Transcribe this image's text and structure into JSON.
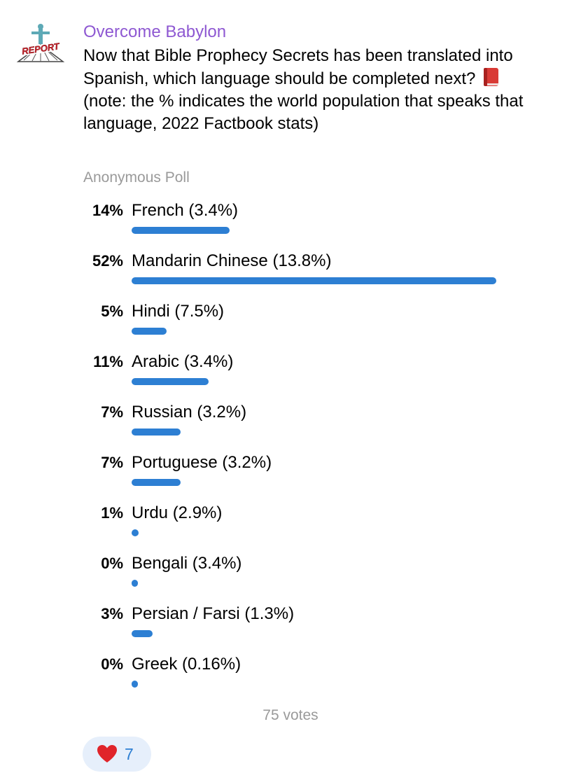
{
  "channel": {
    "name": "Overcome Babylon",
    "avatar_text": "REPORT"
  },
  "poll": {
    "question_part1": "Now that Bible Prophecy Secrets has been translated into Spanish, which language should be completed next?",
    "question_icon": "red-book-icon",
    "question_part2": "(note: the % indicates the world population that speaks that language, 2022 Factbook stats)",
    "type": "Anonymous Poll",
    "options": [
      {
        "percent": "14%",
        "label": "French (3.4%)",
        "value": 14
      },
      {
        "percent": "52%",
        "label": "Mandarin Chinese (13.8%)",
        "value": 52
      },
      {
        "percent": "5%",
        "label": "Hindi (7.5%)",
        "value": 5
      },
      {
        "percent": "11%",
        "label": "Arabic (3.4%)",
        "value": 11
      },
      {
        "percent": "7%",
        "label": "Russian (3.2%)",
        "value": 7
      },
      {
        "percent": "7%",
        "label": "Portuguese (3.2%)",
        "value": 7
      },
      {
        "percent": "1%",
        "label": "Urdu (2.9%)",
        "value": 1
      },
      {
        "percent": "0%",
        "label": "Bengali (3.4%)",
        "value": 0
      },
      {
        "percent": "3%",
        "label": "Persian / Farsi (1.3%)",
        "value": 3
      },
      {
        "percent": "0%",
        "label": "Greek (0.16%)",
        "value": 0
      }
    ],
    "votes": "75 votes"
  },
  "reaction": {
    "icon": "heart-icon",
    "count": "7"
  },
  "colors": {
    "channel_name": "#8e58d2",
    "bar": "#2d7fd3",
    "muted": "#9a9a9a",
    "reaction_bg": "#e6effb"
  }
}
